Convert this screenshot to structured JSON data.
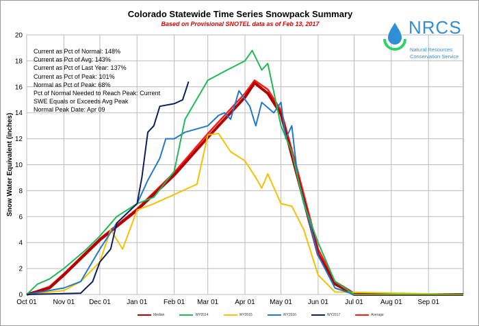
{
  "chart_data": {
    "type": "line",
    "title": "Colorado Statewide Time Series Snowpack Summary",
    "subtitle": "Based on Provisional SNOTEL data as of Feb 13, 2017",
    "xlabel": "",
    "ylabel": "Snow Water Equivalent (inches)",
    "ylim": [
      0,
      20
    ],
    "yticks": [
      "0",
      "2",
      "4",
      "6",
      "8",
      "10",
      "12",
      "14",
      "16",
      "18",
      "20"
    ],
    "xlim": [
      "2016-10-01",
      "2017-09-30"
    ],
    "xticks": [
      {
        "date": "2016-10-01",
        "label": "Oct 01"
      },
      {
        "date": "2016-11-01",
        "label": "Nov 01"
      },
      {
        "date": "2016-12-01",
        "label": "Dec 01"
      },
      {
        "date": "2017-01-01",
        "label": "Jan 01"
      },
      {
        "date": "2017-02-01",
        "label": "Feb 01"
      },
      {
        "date": "2017-03-01",
        "label": "Mar 01"
      },
      {
        "date": "2017-04-01",
        "label": "Apr 01"
      },
      {
        "date": "2017-05-01",
        "label": "May 01"
      },
      {
        "date": "2017-06-01",
        "label": "Jun 01"
      },
      {
        "date": "2017-07-01",
        "label": "Jul 01"
      },
      {
        "date": "2017-08-01",
        "label": "Aug 01"
      },
      {
        "date": "2017-09-01",
        "label": "Sep 01"
      }
    ],
    "grid": true,
    "legend_position": "bottom",
    "series": [
      {
        "name": "Median",
        "color": "#b00000",
        "x": [
          "2016-10-01",
          "2016-10-20",
          "2016-11-01",
          "2016-12-01",
          "2017-01-01",
          "2017-02-01",
          "2017-03-01",
          "2017-04-01",
          "2017-04-09",
          "2017-04-20",
          "2017-05-01",
          "2017-05-15",
          "2017-06-01",
          "2017-06-15",
          "2017-07-01",
          "2017-09-30"
        ],
        "y": [
          0,
          0.5,
          1.5,
          4.2,
          6.5,
          9.2,
          12.1,
          15.2,
          16.3,
          15.5,
          13.9,
          9,
          3.1,
          0.8,
          0,
          0
        ]
      },
      {
        "name": "WY2014",
        "color": "#1db954",
        "x": [
          "2016-10-01",
          "2016-10-10",
          "2016-10-20",
          "2016-11-01",
          "2016-11-20",
          "2016-12-01",
          "2016-12-15",
          "2017-01-01",
          "2017-01-15",
          "2017-02-01",
          "2017-02-10",
          "2017-03-01",
          "2017-03-15",
          "2017-04-01",
          "2017-04-07",
          "2017-04-15",
          "2017-04-20",
          "2017-05-01",
          "2017-05-10",
          "2017-05-20",
          "2017-06-01",
          "2017-06-15",
          "2017-07-01",
          "2017-09-30"
        ],
        "y": [
          0,
          0.8,
          1.2,
          2,
          3.5,
          4.5,
          6,
          7,
          7.5,
          9.5,
          13.5,
          16.5,
          17.2,
          18,
          18.8,
          17.3,
          17.8,
          13,
          11,
          7,
          4,
          1,
          0,
          0
        ]
      },
      {
        "name": "WY2015",
        "color": "#f5c000",
        "x": [
          "2016-10-01",
          "2016-11-01",
          "2016-11-15",
          "2016-12-01",
          "2016-12-10",
          "2016-12-20",
          "2017-01-01",
          "2017-01-15",
          "2017-02-01",
          "2017-02-20",
          "2017-03-01",
          "2017-03-10",
          "2017-03-20",
          "2017-04-01",
          "2017-04-10",
          "2017-04-15",
          "2017-04-20",
          "2017-05-01",
          "2017-05-10",
          "2017-05-20",
          "2017-06-01",
          "2017-06-15",
          "2017-09-30"
        ],
        "y": [
          0,
          0.3,
          1,
          2.5,
          5,
          3.5,
          6.5,
          7,
          7.7,
          8.5,
          12.3,
          12.4,
          11,
          10.3,
          9,
          8.2,
          9.3,
          7,
          6.8,
          5,
          1.5,
          0.2,
          0
        ]
      },
      {
        "name": "WY2016",
        "color": "#1f78c8",
        "x": [
          "2016-10-01",
          "2016-11-01",
          "2016-11-15",
          "2016-12-01",
          "2016-12-15",
          "2017-01-01",
          "2017-01-10",
          "2017-01-20",
          "2017-01-25",
          "2017-02-01",
          "2017-02-10",
          "2017-03-01",
          "2017-03-10",
          "2017-03-15",
          "2017-03-20",
          "2017-03-27",
          "2017-04-05",
          "2017-04-10",
          "2017-04-15",
          "2017-04-25",
          "2017-05-01",
          "2017-05-05",
          "2017-05-10",
          "2017-05-15",
          "2017-06-01",
          "2017-06-15",
          "2017-07-01",
          "2017-09-30"
        ],
        "y": [
          0,
          0.5,
          1,
          3.5,
          5.5,
          7,
          8.8,
          10.5,
          12,
          12,
          12.5,
          13,
          13.8,
          14,
          13.5,
          15.7,
          14.5,
          13,
          14.8,
          14,
          14.8,
          12,
          13,
          9,
          3,
          0.5,
          0,
          0
        ]
      },
      {
        "name": "WY2017",
        "color": "#0a1f5c",
        "x": [
          "2016-10-01",
          "2016-11-15",
          "2016-11-25",
          "2016-12-01",
          "2016-12-10",
          "2016-12-15",
          "2017-01-01",
          "2017-01-05",
          "2017-01-10",
          "2017-01-15",
          "2017-01-20",
          "2017-02-01",
          "2017-02-08",
          "2017-02-13"
        ],
        "y": [
          0,
          0.1,
          1,
          2.5,
          3.5,
          5.5,
          7,
          9,
          12.5,
          13,
          14.5,
          14.7,
          15,
          16.4
        ]
      },
      {
        "name": "Average",
        "color": "#ff1a1a",
        "x": [
          "2016-10-01",
          "2016-10-20",
          "2016-11-01",
          "2016-12-01",
          "2017-01-01",
          "2017-02-01",
          "2017-03-01",
          "2017-04-01",
          "2017-04-09",
          "2017-04-20",
          "2017-05-01",
          "2017-05-15",
          "2017-06-01",
          "2017-06-15",
          "2017-07-01",
          "2017-09-30"
        ],
        "y": [
          0,
          0.6,
          1.6,
          4.3,
          6.6,
          9.4,
          12.4,
          15.5,
          16.5,
          15.8,
          14.2,
          9.5,
          3.5,
          1.0,
          0.1,
          0
        ]
      }
    ]
  },
  "stats": [
    "Current  as Pct of Normal:  148%",
    "Current  as Pct of Avg:  143%",
    "Current  as Pct of Last Year:  137%",
    "Current  as Pct of Peak:  101%",
    "Normal  as Pct of Peak:  68%",
    "Pct of Normal Needed  to Reach Peak:  Current",
    "SWE Equals  or Exceeds Avg Peak",
    "Normal  Peak Date:  Apr 09"
  ],
  "logo": {
    "text": "NRCS",
    "line1": "Natural Resources",
    "line2": "Conservation Service"
  }
}
